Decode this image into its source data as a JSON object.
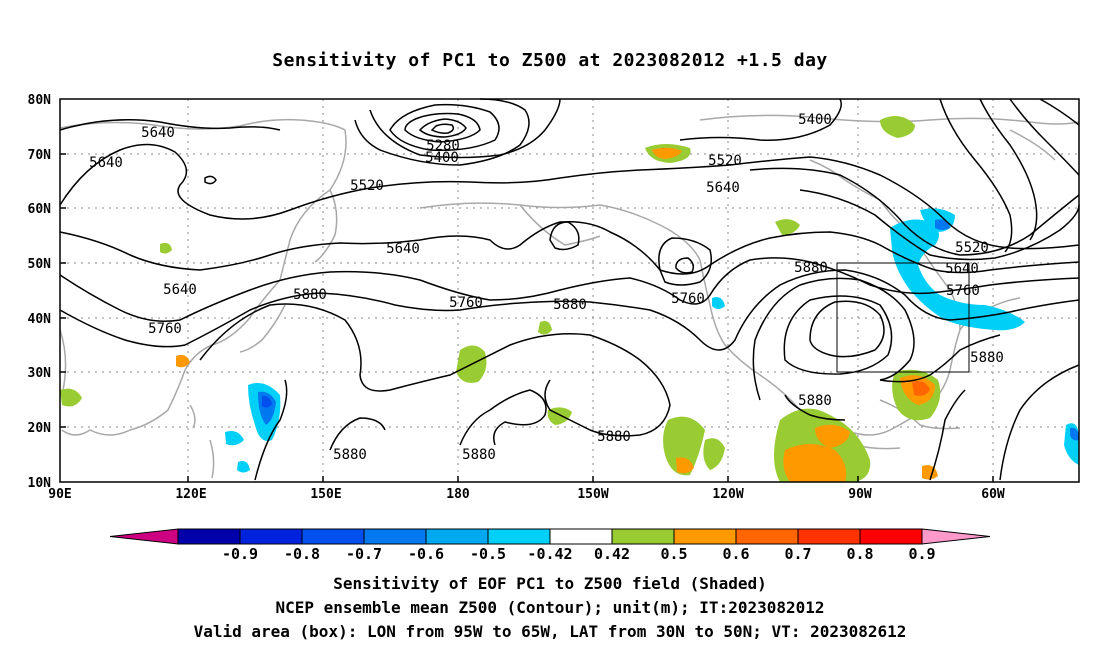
{
  "title": "Sensitivity of PC1 to Z500 at 2023082012 +1.5 day",
  "map": {
    "lat_labels": [
      "80N",
      "70N",
      "60N",
      "50N",
      "40N",
      "30N",
      "20N",
      "10N"
    ],
    "lon_labels": [
      "90E",
      "120E",
      "150E",
      "180",
      "150W",
      "120W",
      "90W",
      "60W"
    ],
    "contour_labels": [
      "5640",
      "5640",
      "5640",
      "5640",
      "5760",
      "5880",
      "5760",
      "5880",
      "5760",
      "5880",
      "5880",
      "5880",
      "5880",
      "5880",
      "5520",
      "5640",
      "5520",
      "5280",
      "5400",
      "5400",
      "5520",
      "5640",
      "5760",
      "5880"
    ],
    "box": {
      "lon_from": "95W",
      "lon_to": "65W",
      "lat_from": "30N",
      "lat_to": "50N"
    }
  },
  "colorbar": {
    "labels": [
      "-0.9",
      "-0.8",
      "-0.7",
      "-0.6",
      "-0.5",
      "-0.42",
      "0.42",
      "0.5",
      "0.6",
      "0.7",
      "0.8",
      "0.9"
    ],
    "colors": [
      "#cc0080",
      "#0000aa",
      "#0022dd",
      "#0050f0",
      "#0078f0",
      "#00a8f0",
      "#00d0f8",
      "#ffffff",
      "#99cc33",
      "#ff9900",
      "#ff6600",
      "#ff3300",
      "#ff0000",
      "#ff99cc"
    ]
  },
  "captions": {
    "line1": "Sensitivity of EOF PC1 to Z500 field (Shaded)",
    "line2": "NCEP ensemble mean Z500 (Contour); unit(m); IT:2023082012",
    "line3": "Valid area (box): LON from 95W to 65W, LAT from 30N to 50N; VT: 2023082612"
  }
}
